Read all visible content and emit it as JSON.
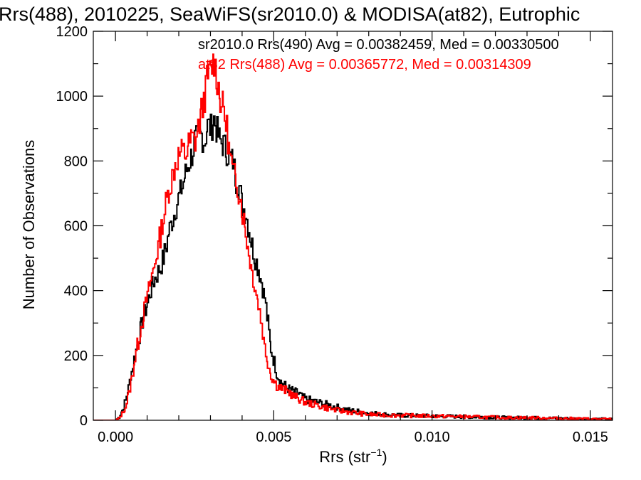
{
  "chart_data": {
    "type": "line",
    "title": "Rrs(488), 2010225, SeaWiFS(sr2010.0) & MODISA(at82), Eutrophic",
    "xlabel": "Rrs (str",
    "xlabel_sup": "−1",
    "xlabel_close": ")",
    "ylabel": "Number of Observations",
    "xlim": [
      -0.0007,
      0.0157
    ],
    "ylim": [
      0,
      1200
    ],
    "x_ticks": [
      0.0,
      0.005,
      0.01,
      0.015
    ],
    "x_tick_labels": [
      "0.000",
      "0.005",
      "0.010",
      "0.015"
    ],
    "y_ticks": [
      0,
      200,
      400,
      600,
      800,
      1000,
      1200
    ],
    "y_tick_labels": [
      "0",
      "200",
      "400",
      "600",
      "800",
      "1000",
      "1200"
    ],
    "grid": false,
    "legend_position": "top-right",
    "series": [
      {
        "name": "sr2010.0 Rrs(490) Avg = 0.00382459, Med = 0.00330500",
        "color": "#000000",
        "x": [
          -0.0007,
          0.0,
          0.0001,
          0.0002,
          0.0003,
          0.0004,
          0.0005,
          0.0006,
          0.0007,
          0.0008,
          0.0009,
          0.001,
          0.0011,
          0.0012,
          0.0013,
          0.0014,
          0.0015,
          0.0016,
          0.0017,
          0.0018,
          0.0019,
          0.002,
          0.0021,
          0.0022,
          0.0023,
          0.0024,
          0.0025,
          0.0026,
          0.0027,
          0.0028,
          0.0029,
          0.003,
          0.0031,
          0.0032,
          0.0033,
          0.0034,
          0.0035,
          0.0036,
          0.0037,
          0.0038,
          0.0039,
          0.004,
          0.0041,
          0.0042,
          0.0043,
          0.0044,
          0.0045,
          0.0046,
          0.0047,
          0.0048,
          0.0049,
          0.005,
          0.0051,
          0.0052,
          0.0053,
          0.0054,
          0.0055,
          0.0056,
          0.0057,
          0.0058,
          0.0059,
          0.006,
          0.0062,
          0.0064,
          0.0066,
          0.0068,
          0.007,
          0.0072,
          0.0074,
          0.0076,
          0.0078,
          0.008,
          0.0085,
          0.009,
          0.0095,
          0.01,
          0.0105,
          0.011,
          0.0115,
          0.012,
          0.0125,
          0.013,
          0.0135,
          0.014,
          0.0145,
          0.015,
          0.0157
        ],
        "y": [
          0,
          0,
          10,
          30,
          60,
          100,
          150,
          200,
          240,
          290,
          330,
          360,
          400,
          430,
          450,
          470,
          500,
          540,
          590,
          620,
          660,
          690,
          720,
          760,
          790,
          820,
          860,
          870,
          880,
          860,
          910,
          900,
          930,
          890,
          860,
          850,
          830,
          810,
          800,
          740,
          720,
          660,
          640,
          590,
          540,
          500,
          470,
          430,
          380,
          300,
          220,
          180,
          140,
          120,
          110,
          100,
          95,
          90,
          85,
          80,
          70,
          65,
          60,
          55,
          50,
          45,
          40,
          35,
          30,
          28,
          25,
          22,
          18,
          15,
          14,
          13,
          12,
          11,
          10,
          9,
          8,
          8,
          7,
          6,
          5,
          4,
          3
        ]
      },
      {
        "name": "at82 Rrs(488) Avg = 0.00365772, Med = 0.00314309",
        "color": "#ff0000",
        "x": [
          -0.0007,
          0.0,
          0.0001,
          0.0002,
          0.0003,
          0.0004,
          0.0005,
          0.0006,
          0.0007,
          0.0008,
          0.0009,
          0.001,
          0.0011,
          0.0012,
          0.0013,
          0.0014,
          0.0015,
          0.0016,
          0.0017,
          0.0018,
          0.0019,
          0.002,
          0.0021,
          0.0022,
          0.0023,
          0.0024,
          0.0025,
          0.0026,
          0.0027,
          0.0028,
          0.0029,
          0.003,
          0.0031,
          0.0032,
          0.0033,
          0.0034,
          0.0035,
          0.0036,
          0.0037,
          0.0038,
          0.0039,
          0.004,
          0.0041,
          0.0042,
          0.0043,
          0.0044,
          0.0045,
          0.0046,
          0.0047,
          0.0048,
          0.0049,
          0.005,
          0.0051,
          0.0052,
          0.0053,
          0.0054,
          0.0055,
          0.0056,
          0.0057,
          0.0058,
          0.0059,
          0.006,
          0.0062,
          0.0064,
          0.0066,
          0.0068,
          0.007,
          0.0072,
          0.0074,
          0.0076,
          0.0078,
          0.008,
          0.0085,
          0.009,
          0.0095,
          0.01,
          0.0105,
          0.011,
          0.0115,
          0.012,
          0.0125,
          0.013,
          0.0135,
          0.014,
          0.0145,
          0.015,
          0.0157
        ],
        "y": [
          0,
          0,
          5,
          20,
          40,
          80,
          130,
          190,
          240,
          290,
          340,
          380,
          430,
          470,
          520,
          570,
          620,
          680,
          720,
          760,
          800,
          820,
          830,
          820,
          850,
          870,
          860,
          900,
          950,
          1000,
          1060,
          1080,
          1110,
          1050,
          990,
          960,
          900,
          820,
          760,
          740,
          700,
          640,
          580,
          520,
          460,
          410,
          360,
          300,
          230,
          180,
          140,
          120,
          105,
          100,
          95,
          90,
          85,
          75,
          70,
          65,
          60,
          55,
          50,
          45,
          40,
          35,
          30,
          28,
          25,
          22,
          20,
          18,
          16,
          15,
          14,
          13,
          12,
          11,
          10,
          9,
          8,
          8,
          7,
          6,
          5,
          4,
          3
        ]
      }
    ]
  }
}
